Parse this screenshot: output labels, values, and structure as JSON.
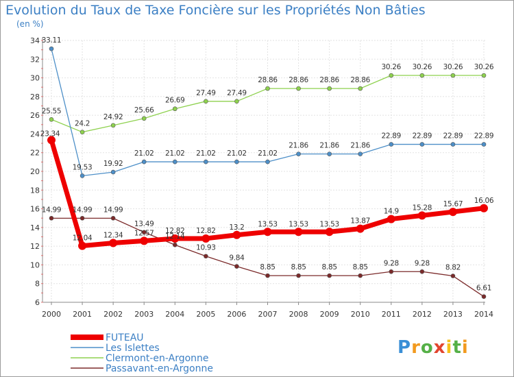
{
  "chart_data": {
    "type": "line",
    "title": "Evolution du Taux de Taxe Foncière sur les Propriétés Non Bâties",
    "ylabel": "(en %)",
    "xlabel": "",
    "ylim": [
      6,
      34
    ],
    "yticks": [
      6,
      8,
      10,
      12,
      14,
      16,
      18,
      20,
      22,
      24,
      26,
      28,
      30,
      32,
      34
    ],
    "categories": [
      "2000",
      "2001",
      "2002",
      "2003",
      "2004",
      "2005",
      "2006",
      "2007",
      "2008",
      "2009",
      "2010",
      "2011",
      "2012",
      "2013",
      "2014"
    ],
    "grid": true,
    "legend_position": "bottom-left",
    "series": [
      {
        "name": "FUTEAU",
        "color": "#ee0000",
        "values": [
          23.34,
          12.04,
          12.34,
          12.57,
          12.82,
          12.82,
          13.2,
          13.53,
          13.53,
          13.53,
          13.87,
          14.9,
          15.28,
          15.67,
          16.06
        ],
        "labels": [
          "23.34",
          "12.04",
          "12.34",
          "12.57",
          "12.82",
          "12.82",
          "13.2",
          "13.53",
          "13.53",
          "13.53",
          "13.87",
          "14.9",
          "15.28",
          "15.67",
          "16.06"
        ]
      },
      {
        "name": "Les Islettes",
        "color": "#4d8fc8",
        "values": [
          33.11,
          19.53,
          19.92,
          21.02,
          21.02,
          21.02,
          21.02,
          21.02,
          21.86,
          21.86,
          21.86,
          22.89,
          22.89,
          22.89,
          22.89
        ],
        "labels": [
          "33.11",
          "19.53",
          "19.92",
          "21.02",
          "21.02",
          "21.02",
          "21.02",
          "21.02",
          "21.86",
          "21.86",
          "21.86",
          "22.89",
          "22.89",
          "22.89",
          "22.89"
        ]
      },
      {
        "name": "Clermont-en-Argonne",
        "color": "#8ed14e",
        "values": [
          25.55,
          24.2,
          24.92,
          25.66,
          26.69,
          27.49,
          27.49,
          28.86,
          28.86,
          28.86,
          28.86,
          30.26,
          30.26,
          30.26,
          30.26
        ],
        "labels": [
          "25.55",
          "24.2",
          "24.92",
          "25.66",
          "26.69",
          "27.49",
          "27.49",
          "28.86",
          "28.86",
          "28.86",
          "28.86",
          "30.26",
          "30.26",
          "30.26",
          "30.26"
        ]
      },
      {
        "name": "Passavant-en-Argonne",
        "color": "#7b2a2a",
        "values": [
          14.99,
          14.99,
          14.99,
          13.49,
          12.14,
          10.93,
          9.84,
          8.85,
          8.85,
          8.85,
          8.85,
          9.28,
          9.28,
          8.82,
          6.61
        ],
        "labels": [
          "14.99",
          "14.99",
          "14.99",
          "13.49",
          "12.14",
          "10.93",
          "9.84",
          "8.85",
          "8.85",
          "8.85",
          "8.85",
          "9.28",
          "9.28",
          "8.82",
          "6.61"
        ]
      }
    ]
  },
  "logo_text": "Proxiti"
}
